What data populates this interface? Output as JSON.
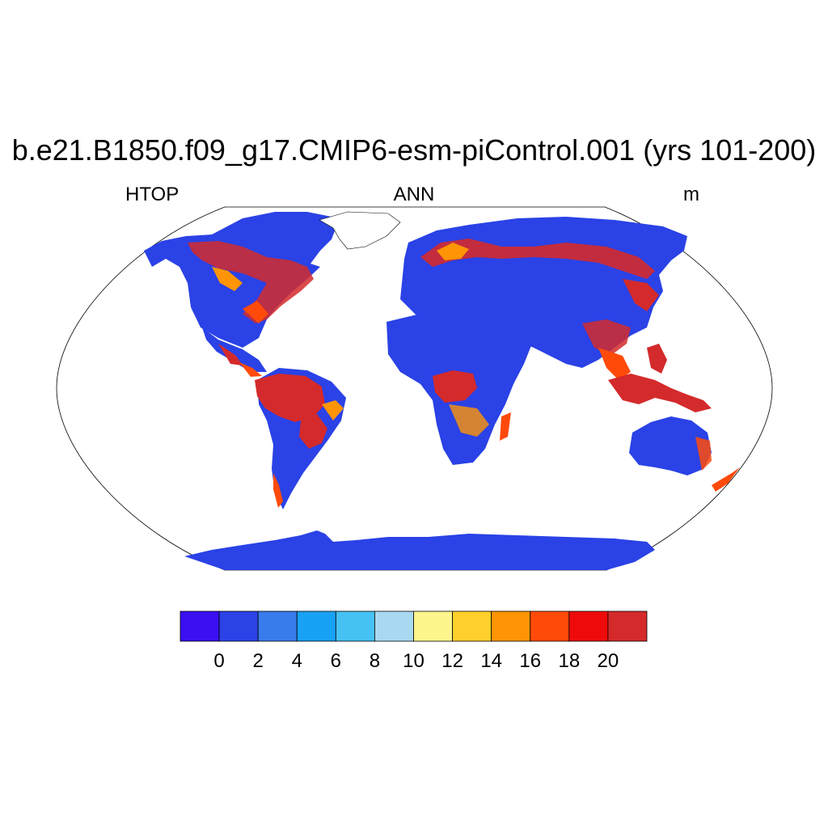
{
  "title": "b.e21.B1850.f09_g17.CMIP6-esm-piControl.001 (yrs 101-200)",
  "left_label": "HTOP",
  "center_label": "ANN",
  "right_label": "m",
  "projection": "Robinson",
  "colorbar": {
    "colors": [
      "#3b0ff2",
      "#2a42e6",
      "#3a7bec",
      "#18a2f5",
      "#45c2f3",
      "#a9d9f0",
      "#fff58e",
      "#ffcf2b",
      "#ff9505",
      "#ff4a0a",
      "#ee0a0a",
      "#d42a2c"
    ],
    "ticks": [
      "0",
      "2",
      "4",
      "6",
      "8",
      "10",
      "12",
      "14",
      "16",
      "18",
      "20"
    ]
  }
}
